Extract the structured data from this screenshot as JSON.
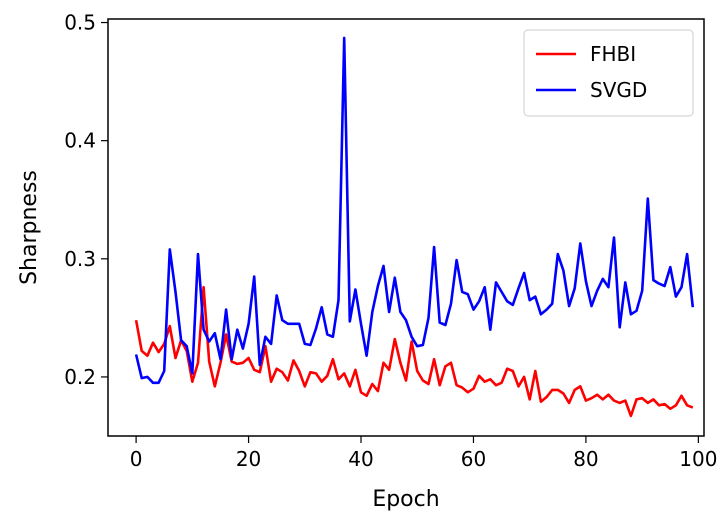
{
  "chart_data": {
    "type": "line",
    "xlabel": "Epoch",
    "ylabel": "Sharpness",
    "xlim": [
      -5,
      101
    ],
    "ylim": [
      0.15,
      0.503
    ],
    "xticks": [
      0,
      20,
      40,
      60,
      80,
      100
    ],
    "xtick_labels": [
      "0",
      "20",
      "40",
      "60",
      "80",
      "100"
    ],
    "yticks": [
      0.2,
      0.3,
      0.4,
      0.5
    ],
    "ytick_labels": [
      "0.2",
      "0.3",
      "0.4",
      "0.5"
    ],
    "grid": false,
    "legend_position": "top-right",
    "series": [
      {
        "name": "FHBI",
        "color": "#ff0000",
        "values": [
          0.248,
          0.222,
          0.218,
          0.229,
          0.221,
          0.228,
          0.243,
          0.216,
          0.231,
          0.222,
          0.196,
          0.212,
          0.276,
          0.213,
          0.192,
          0.212,
          0.236,
          0.213,
          0.211,
          0.212,
          0.216,
          0.206,
          0.204,
          0.226,
          0.196,
          0.207,
          0.204,
          0.197,
          0.214,
          0.205,
          0.192,
          0.204,
          0.203,
          0.196,
          0.201,
          0.215,
          0.198,
          0.203,
          0.192,
          0.206,
          0.187,
          0.184,
          0.194,
          0.188,
          0.212,
          0.206,
          0.232,
          0.212,
          0.197,
          0.23,
          0.205,
          0.197,
          0.194,
          0.215,
          0.193,
          0.209,
          0.212,
          0.193,
          0.191,
          0.187,
          0.19,
          0.201,
          0.196,
          0.198,
          0.193,
          0.195,
          0.207,
          0.205,
          0.192,
          0.2,
          0.181,
          0.205,
          0.179,
          0.183,
          0.189,
          0.189,
          0.186,
          0.178,
          0.189,
          0.192,
          0.18,
          0.182,
          0.185,
          0.181,
          0.185,
          0.18,
          0.178,
          0.18,
          0.167,
          0.181,
          0.182,
          0.178,
          0.181,
          0.176,
          0.177,
          0.173,
          0.176,
          0.184,
          0.176,
          0.174
        ]
      },
      {
        "name": "SVGD",
        "color": "#0000ff",
        "values": [
          0.219,
          0.199,
          0.2,
          0.195,
          0.195,
          0.205,
          0.308,
          0.272,
          0.231,
          0.226,
          0.203,
          0.304,
          0.24,
          0.23,
          0.237,
          0.215,
          0.257,
          0.215,
          0.24,
          0.224,
          0.245,
          0.285,
          0.21,
          0.234,
          0.228,
          0.269,
          0.248,
          0.245,
          0.245,
          0.245,
          0.228,
          0.227,
          0.241,
          0.259,
          0.236,
          0.234,
          0.265,
          0.487,
          0.247,
          0.274,
          0.245,
          0.218,
          0.255,
          0.277,
          0.294,
          0.255,
          0.284,
          0.255,
          0.248,
          0.234,
          0.226,
          0.227,
          0.25,
          0.31,
          0.246,
          0.244,
          0.262,
          0.299,
          0.272,
          0.27,
          0.257,
          0.264,
          0.276,
          0.24,
          0.28,
          0.272,
          0.264,
          0.261,
          0.275,
          0.288,
          0.265,
          0.268,
          0.253,
          0.257,
          0.262,
          0.304,
          0.29,
          0.26,
          0.275,
          0.313,
          0.281,
          0.26,
          0.273,
          0.283,
          0.276,
          0.318,
          0.242,
          0.28,
          0.253,
          0.256,
          0.273,
          0.351,
          0.282,
          0.279,
          0.277,
          0.293,
          0.268,
          0.276,
          0.304,
          0.259
        ]
      }
    ]
  }
}
